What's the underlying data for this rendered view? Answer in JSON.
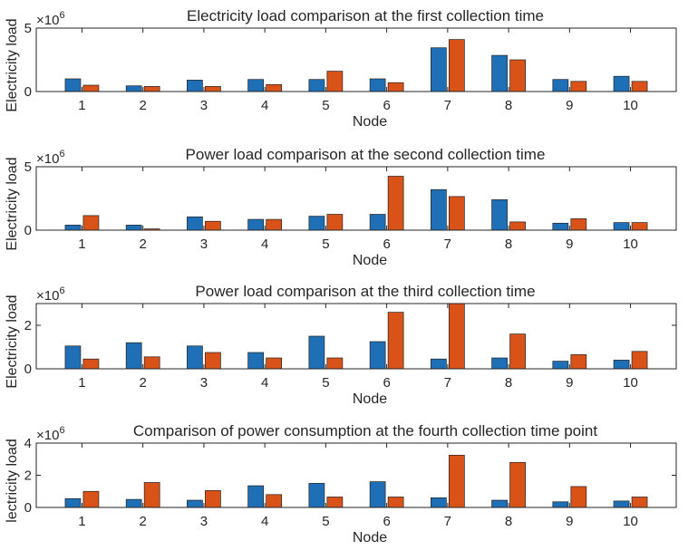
{
  "colors": {
    "series_a": "#1f6fb6",
    "series_b": "#d95319",
    "axis": "#262626",
    "background": "#ffffff"
  },
  "chart_data": [
    {
      "type": "bar",
      "title": "Electricity load comparison at the first collection time",
      "xlabel": "Node",
      "ylabel": "Electricity load",
      "exponent_base": "×10",
      "exponent_power": "6",
      "ylim": [
        0,
        5
      ],
      "yticks": [
        "0",
        "5"
      ],
      "categories": [
        "1",
        "2",
        "3",
        "4",
        "5",
        "6",
        "7",
        "8",
        "9",
        "10"
      ],
      "series": [
        {
          "values": [
            1.0,
            0.45,
            0.9,
            0.95,
            0.95,
            1.0,
            3.45,
            2.85,
            0.95,
            1.2
          ]
        },
        {
          "values": [
            0.5,
            0.4,
            0.4,
            0.55,
            1.6,
            0.7,
            4.1,
            2.5,
            0.8,
            0.8
          ]
        }
      ],
      "grid": false
    },
    {
      "type": "bar",
      "title": "Power load comparison at the second collection time",
      "xlabel": "Node",
      "ylabel": "Electricity load",
      "exponent_base": "×10",
      "exponent_power": "6",
      "ylim": [
        0,
        5
      ],
      "yticks": [
        "0",
        "5"
      ],
      "categories": [
        "1",
        "2",
        "3",
        "4",
        "5",
        "6",
        "7",
        "8",
        "9",
        "10"
      ],
      "series": [
        {
          "values": [
            0.4,
            0.4,
            1.05,
            0.85,
            1.1,
            1.25,
            3.2,
            2.4,
            0.55,
            0.6
          ]
        },
        {
          "values": [
            1.15,
            0.1,
            0.7,
            0.85,
            1.25,
            4.25,
            2.65,
            0.65,
            0.9,
            0.6
          ]
        }
      ],
      "grid": false
    },
    {
      "type": "bar",
      "title": "Power load comparison at the third collection time",
      "xlabel": "Node",
      "ylabel": "Electricity load",
      "exponent_base": "×10",
      "exponent_power": "6",
      "ylim": [
        0,
        3
      ],
      "yticks": [
        "0",
        "2"
      ],
      "categories": [
        "1",
        "2",
        "3",
        "4",
        "5",
        "6",
        "7",
        "8",
        "9",
        "10"
      ],
      "series": [
        {
          "values": [
            1.05,
            1.2,
            1.05,
            0.75,
            1.5,
            1.25,
            0.45,
            0.5,
            0.35,
            0.4
          ]
        },
        {
          "values": [
            0.45,
            0.55,
            0.75,
            0.5,
            0.5,
            2.6,
            3.0,
            1.6,
            0.65,
            0.8
          ]
        }
      ],
      "grid": false
    },
    {
      "type": "bar",
      "title": "Comparison of power consumption at the fourth collection time point",
      "xlabel": "Node",
      "ylabel": "lectricity load",
      "exponent_base": "×10",
      "exponent_power": "6",
      "ylim": [
        0,
        4
      ],
      "yticks": [
        "0",
        "2",
        "4"
      ],
      "categories": [
        "1",
        "2",
        "3",
        "4",
        "5",
        "6",
        "7",
        "8",
        "9",
        "10"
      ],
      "series": [
        {
          "values": [
            0.55,
            0.5,
            0.45,
            1.35,
            1.5,
            1.6,
            0.6,
            0.45,
            0.35,
            0.4
          ]
        },
        {
          "values": [
            1.0,
            1.55,
            1.05,
            0.8,
            0.65,
            0.65,
            3.25,
            2.8,
            1.3,
            0.65
          ]
        }
      ],
      "grid": false
    }
  ]
}
